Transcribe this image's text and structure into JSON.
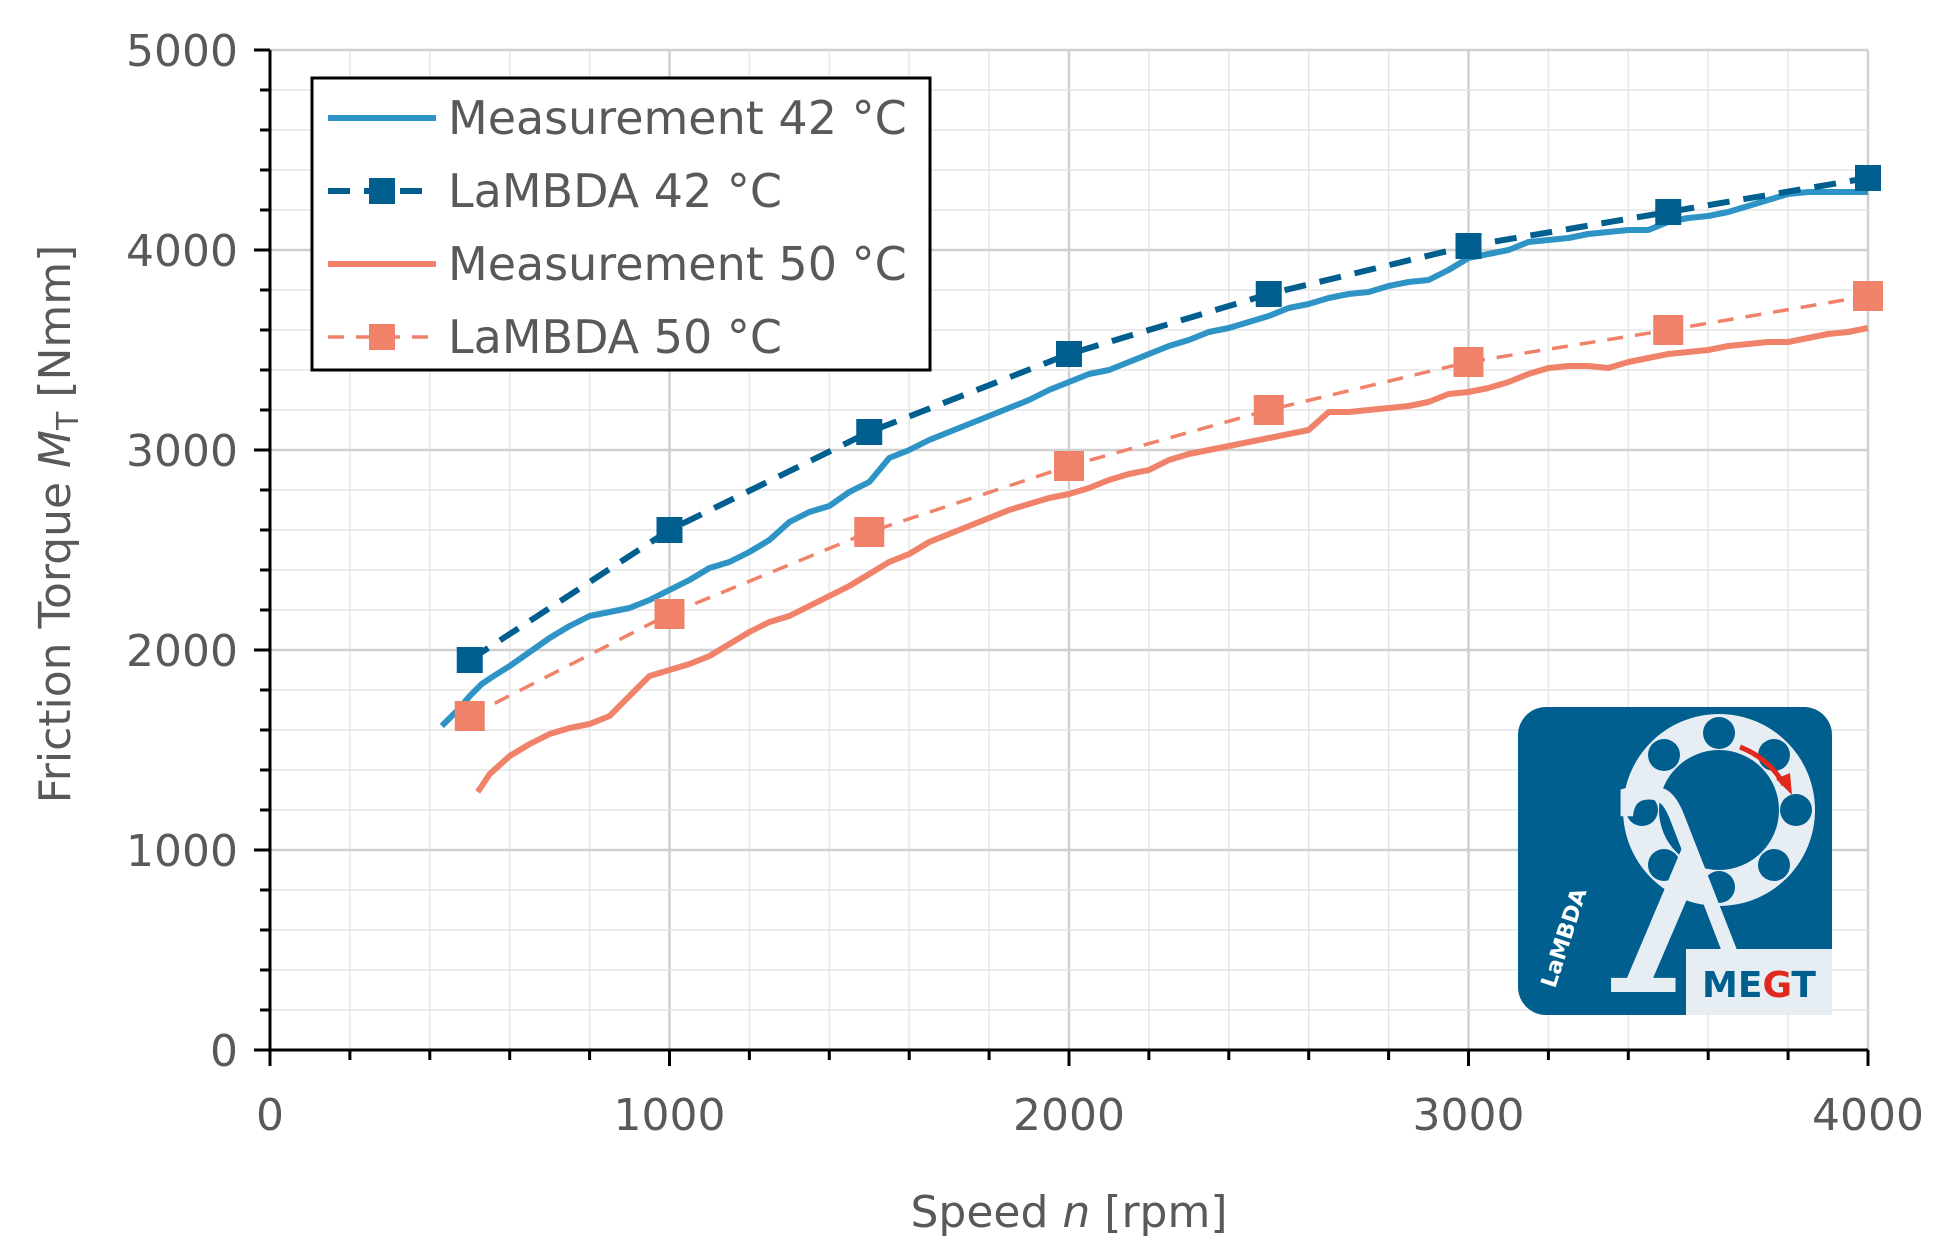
{
  "chart_data": {
    "type": "line",
    "xlabel_parts": [
      "Speed ",
      "n",
      " [rpm]"
    ],
    "ylabel_parts": [
      "Friction Torque ",
      "M",
      "T",
      "  [Nmm]"
    ],
    "xlim": [
      0,
      4000
    ],
    "ylim": [
      0,
      5000
    ],
    "x_ticks": [
      0,
      1000,
      2000,
      3000,
      4000
    ],
    "y_ticks": [
      0,
      1000,
      2000,
      3000,
      4000,
      5000
    ],
    "x_minor_step": 200,
    "y_minor_step": 200,
    "grid": true,
    "legend_position": "top-left",
    "series": [
      {
        "name": "Measurement 42 °C",
        "style": "solid",
        "marker": "none",
        "color": "#2E93C5",
        "x": [
          430,
          470,
          500,
          530,
          560,
          600,
          650,
          700,
          750,
          800,
          850,
          900,
          950,
          1000,
          1050,
          1100,
          1150,
          1200,
          1250,
          1300,
          1350,
          1400,
          1450,
          1500,
          1550,
          1600,
          1650,
          1700,
          1750,
          1800,
          1850,
          1900,
          1950,
          2000,
          2050,
          2100,
          2150,
          2200,
          2250,
          2300,
          2350,
          2400,
          2450,
          2500,
          2550,
          2600,
          2650,
          2700,
          2750,
          2800,
          2850,
          2900,
          2950,
          3000,
          3050,
          3100,
          3150,
          3200,
          3250,
          3300,
          3350,
          3400,
          3450,
          3500,
          3550,
          3600,
          3650,
          3700,
          3750,
          3800,
          3850,
          3900,
          3950,
          4000
        ],
        "y": [
          1620,
          1700,
          1770,
          1830,
          1870,
          1920,
          1990,
          2060,
          2120,
          2170,
          2190,
          2210,
          2250,
          2300,
          2350,
          2410,
          2440,
          2490,
          2550,
          2640,
          2690,
          2720,
          2790,
          2840,
          2960,
          3000,
          3050,
          3090,
          3130,
          3170,
          3210,
          3250,
          3300,
          3340,
          3380,
          3400,
          3440,
          3480,
          3520,
          3550,
          3590,
          3610,
          3640,
          3670,
          3710,
          3730,
          3760,
          3780,
          3790,
          3820,
          3840,
          3850,
          3900,
          3960,
          3980,
          4000,
          4040,
          4050,
          4060,
          4080,
          4090,
          4100,
          4100,
          4140,
          4160,
          4170,
          4190,
          4220,
          4250,
          4280,
          4290,
          4290,
          4290,
          4290
        ]
      },
      {
        "name": "LaMBDA 42 °C",
        "style": "dashed",
        "marker": "square",
        "color": "#005F8F",
        "x": [
          500,
          1000,
          1500,
          2000,
          2500,
          3000,
          3500,
          4000
        ],
        "y": [
          1950,
          2600,
          3090,
          3480,
          3780,
          4020,
          4190,
          4360
        ]
      },
      {
        "name": "Measurement 50 °C",
        "style": "solid",
        "marker": "none",
        "color": "#F1826A",
        "x": [
          520,
          550,
          600,
          650,
          700,
          750,
          800,
          850,
          900,
          950,
          1000,
          1050,
          1100,
          1150,
          1200,
          1250,
          1300,
          1350,
          1400,
          1450,
          1500,
          1550,
          1600,
          1650,
          1700,
          1750,
          1800,
          1850,
          1900,
          1950,
          2000,
          2050,
          2100,
          2150,
          2200,
          2250,
          2300,
          2350,
          2400,
          2450,
          2500,
          2550,
          2600,
          2650,
          2700,
          2750,
          2800,
          2850,
          2900,
          2950,
          3000,
          3050,
          3100,
          3150,
          3200,
          3250,
          3300,
          3350,
          3400,
          3450,
          3500,
          3550,
          3600,
          3650,
          3700,
          3750,
          3800,
          3850,
          3900,
          3950,
          4000
        ],
        "y": [
          1290,
          1380,
          1470,
          1530,
          1580,
          1610,
          1630,
          1670,
          1770,
          1870,
          1900,
          1930,
          1970,
          2030,
          2090,
          2140,
          2170,
          2220,
          2270,
          2320,
          2380,
          2440,
          2480,
          2540,
          2580,
          2620,
          2660,
          2700,
          2730,
          2760,
          2780,
          2810,
          2850,
          2880,
          2900,
          2950,
          2980,
          3000,
          3020,
          3040,
          3060,
          3080,
          3100,
          3190,
          3190,
          3200,
          3210,
          3220,
          3240,
          3280,
          3290,
          3310,
          3340,
          3380,
          3410,
          3420,
          3420,
          3410,
          3440,
          3460,
          3480,
          3490,
          3500,
          3520,
          3530,
          3540,
          3540,
          3560,
          3580,
          3590,
          3610
        ]
      },
      {
        "name": "LaMBDA 50 °C",
        "style": "dashed",
        "marker": "square",
        "color": "#F1826A",
        "x": [
          500,
          1000,
          1500,
          2000,
          2500,
          3000,
          3500,
          4000
        ],
        "y": [
          1670,
          2180,
          2590,
          2920,
          3200,
          3440,
          3600,
          3770
        ]
      }
    ]
  },
  "logo": {
    "name": "LaMBDA MEGT logo",
    "bg_color": "#005F8F",
    "accent_color": "#E0291C",
    "symbol": "λ",
    "brand_text": "LaMBDA",
    "org_prefix": "ME",
    "org_gear": "G",
    "org_suffix": "T"
  }
}
